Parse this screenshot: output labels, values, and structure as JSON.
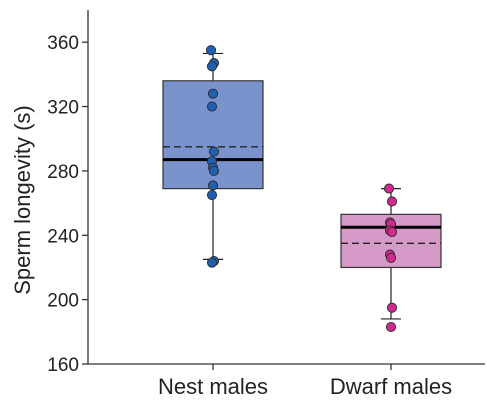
{
  "chart_data": {
    "type": "box",
    "title": "",
    "xlabel": "",
    "ylabel": "Sperm longevity (s)",
    "ylim": [
      160,
      380
    ],
    "yticks": [
      160,
      200,
      240,
      280,
      320,
      360
    ],
    "categories": [
      "Nest males",
      "Dwarf males"
    ],
    "series": [
      {
        "category": "Nest males",
        "box_color": "#7b93cd",
        "point_color": "#2060b0",
        "whisker_low": 225,
        "q1": 269,
        "median": 287,
        "mean": 295,
        "q3": 336,
        "whisker_high": 353,
        "points": [
          355,
          347,
          345,
          328,
          320,
          292,
          286,
          282,
          280,
          271,
          265,
          224,
          223
        ]
      },
      {
        "category": "Dwarf males",
        "box_color": "#d59ac8",
        "point_color": "#d02a8f",
        "whisker_low": 188,
        "q1": 220,
        "median": 245,
        "mean": 235,
        "q3": 253,
        "whisker_high": 269,
        "points": [
          269,
          261,
          248,
          247,
          243,
          242,
          228,
          226,
          195,
          183
        ]
      }
    ]
  }
}
